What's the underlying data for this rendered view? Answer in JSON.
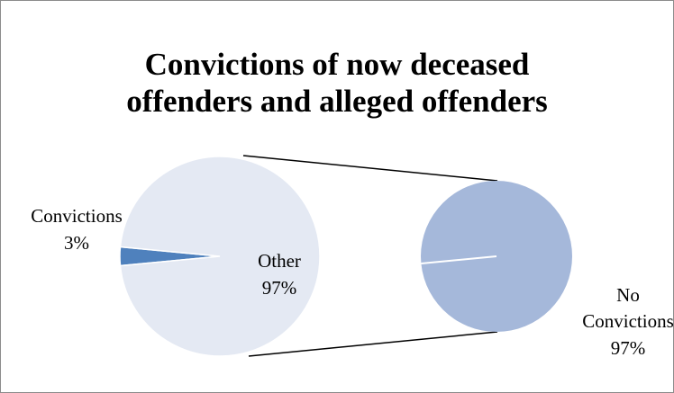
{
  "chart_data": {
    "type": "pie-of-pie",
    "title": [
      "Convictions of now deceased",
      "offenders and alleged offenders"
    ],
    "primary": {
      "categories": [
        "Convictions",
        "Other"
      ],
      "values": [
        3,
        97
      ],
      "value_labels": [
        "3%",
        "97%"
      ],
      "colors": [
        "#4f81bd",
        "#e4e9f3"
      ]
    },
    "secondary": {
      "categories": [
        "No Convictions"
      ],
      "values": [
        97
      ],
      "value_labels": [
        "97%"
      ],
      "colors": [
        "#a5b8da"
      ]
    }
  }
}
